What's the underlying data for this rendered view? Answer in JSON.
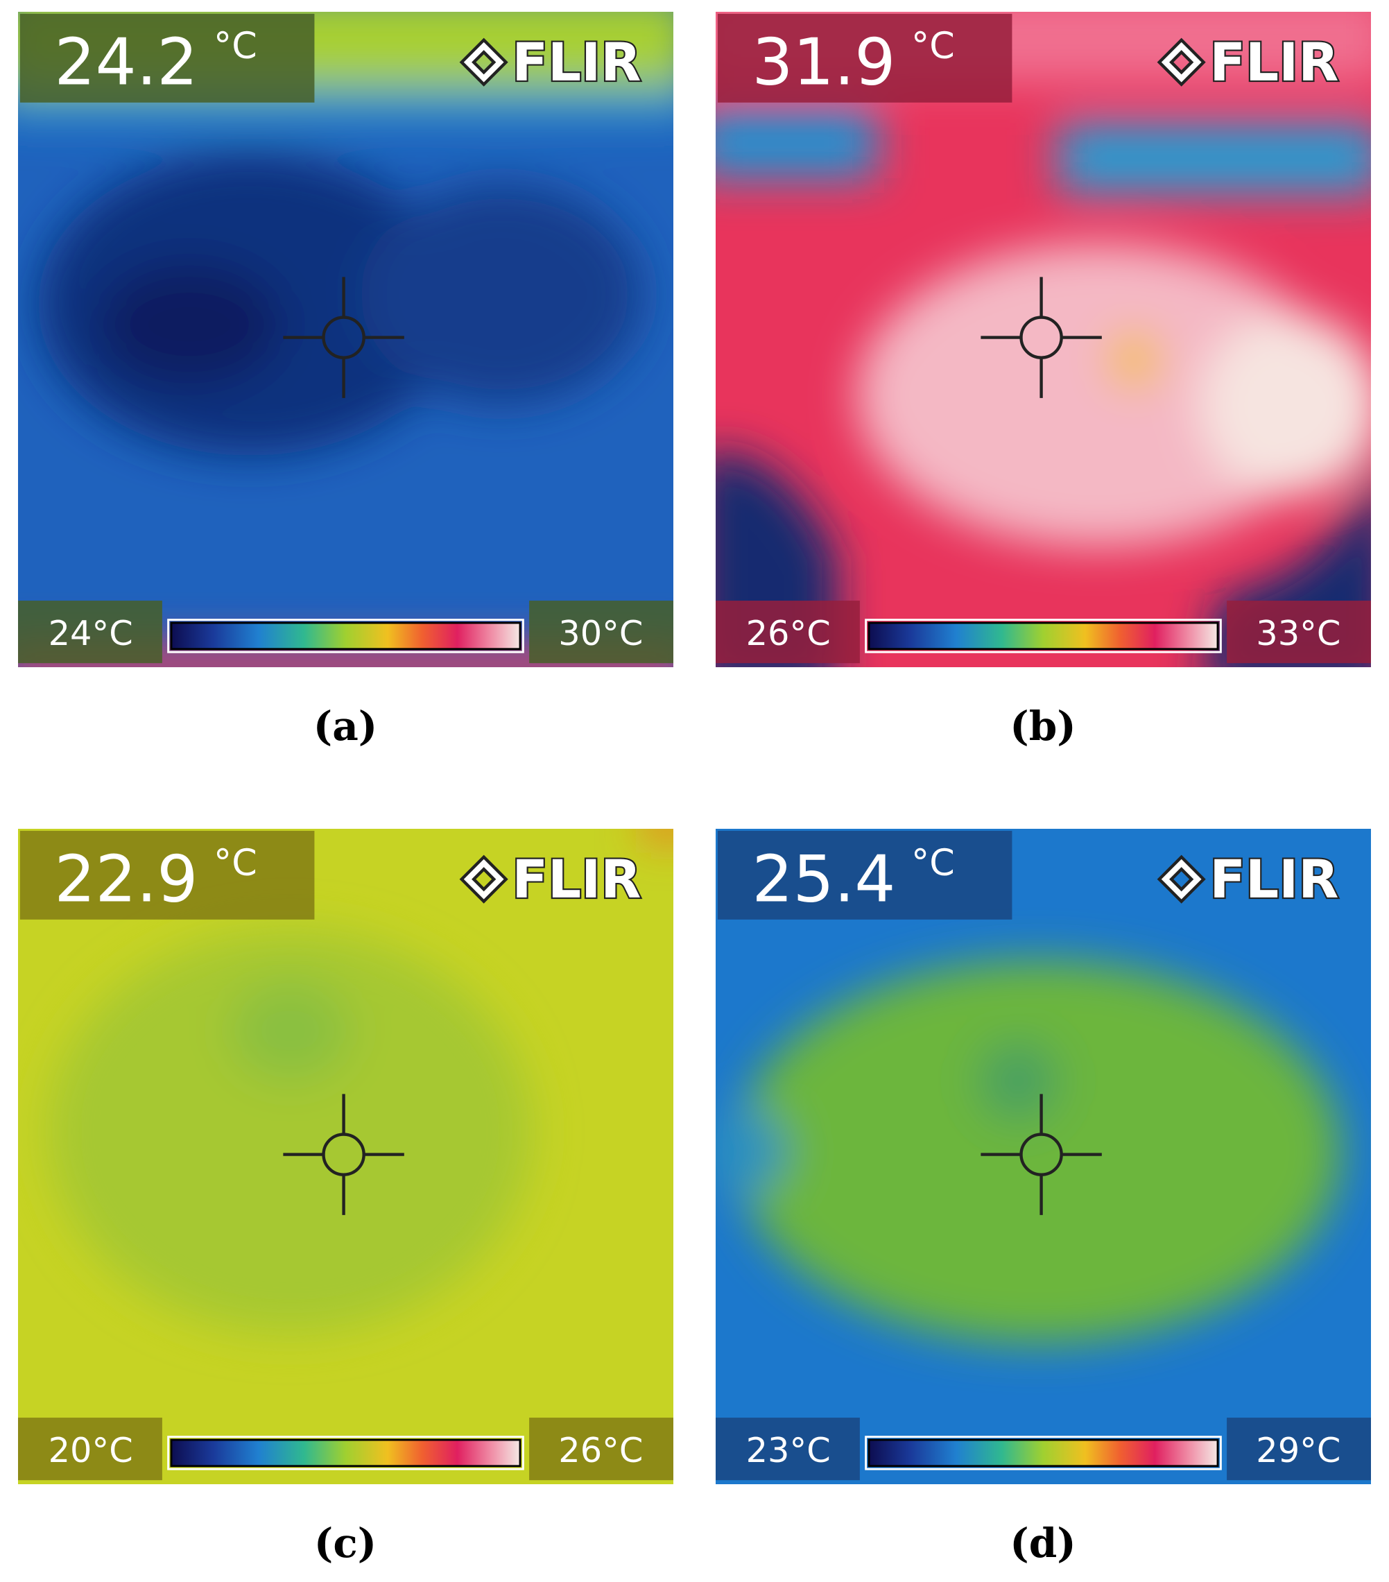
{
  "panels": [
    {
      "label": "(a)",
      "reading": "24.2",
      "unit": "°C",
      "brand": "FLIR",
      "scale_min": "24°C",
      "scale_max": "30°C"
    },
    {
      "label": "(b)",
      "reading": "31.9",
      "unit": "°C",
      "brand": "FLIR",
      "scale_min": "26°C",
      "scale_max": "33°C"
    },
    {
      "label": "(c)",
      "reading": "22.9",
      "unit": "°C",
      "brand": "FLIR",
      "scale_min": "20°C",
      "scale_max": "26°C"
    },
    {
      "label": "(d)",
      "reading": "25.4",
      "unit": "°C",
      "brand": "FLIR",
      "scale_min": "23°C",
      "scale_max": "29°C"
    }
  ]
}
